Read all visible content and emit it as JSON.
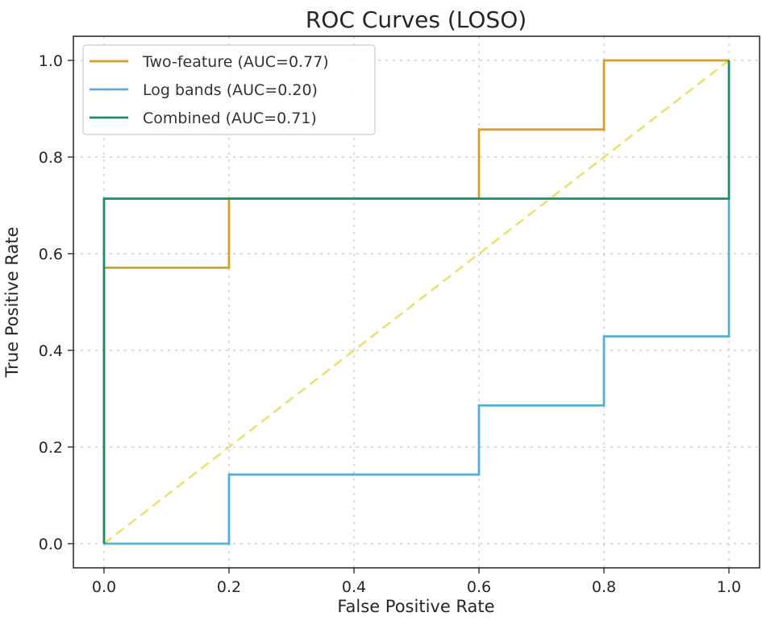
{
  "chart_data": {
    "type": "line",
    "title": "ROC Curves (LOSO)",
    "xlabel": "False Positive Rate",
    "ylabel": "True Positive Rate",
    "xlim": [
      -0.05,
      1.05
    ],
    "ylim": [
      -0.05,
      1.05
    ],
    "xticks": [
      0.0,
      0.2,
      0.4,
      0.6,
      0.8,
      1.0
    ],
    "yticks": [
      0.0,
      0.2,
      0.4,
      0.6,
      0.8,
      1.0
    ],
    "xtick_labels": [
      "0.0",
      "0.2",
      "0.4",
      "0.6",
      "0.8",
      "1.0"
    ],
    "ytick_labels": [
      "0.0",
      "0.2",
      "0.4",
      "0.6",
      "0.8",
      "1.0"
    ],
    "grid": true,
    "legend_position": "top-left",
    "series": [
      {
        "name": "Two-feature (AUC=0.77)",
        "color": "#d4a02a",
        "x": [
          0.0,
          0.0,
          0.2,
          0.2,
          0.6,
          0.6,
          0.8,
          0.8,
          1.0
        ],
        "y": [
          0.0,
          0.571,
          0.571,
          0.714,
          0.714,
          0.857,
          0.857,
          1.0,
          1.0
        ]
      },
      {
        "name": "Log bands (AUC=0.20)",
        "color": "#5aaed6",
        "x": [
          0.0,
          0.2,
          0.2,
          0.6,
          0.6,
          0.8,
          0.8,
          1.0,
          1.0
        ],
        "y": [
          0.0,
          0.0,
          0.143,
          0.143,
          0.286,
          0.286,
          0.429,
          0.429,
          0.714
        ]
      },
      {
        "name": "Combined (AUC=0.71)",
        "color": "#1f8a6a",
        "x": [
          0.0,
          0.0,
          1.0,
          1.0
        ],
        "y": [
          0.0,
          0.714,
          0.714,
          1.0
        ]
      }
    ],
    "reference": {
      "name": "chance",
      "color": "#e8e070",
      "x": [
        0.0,
        1.0
      ],
      "y": [
        0.0,
        1.0
      ],
      "style": "dashed"
    }
  }
}
